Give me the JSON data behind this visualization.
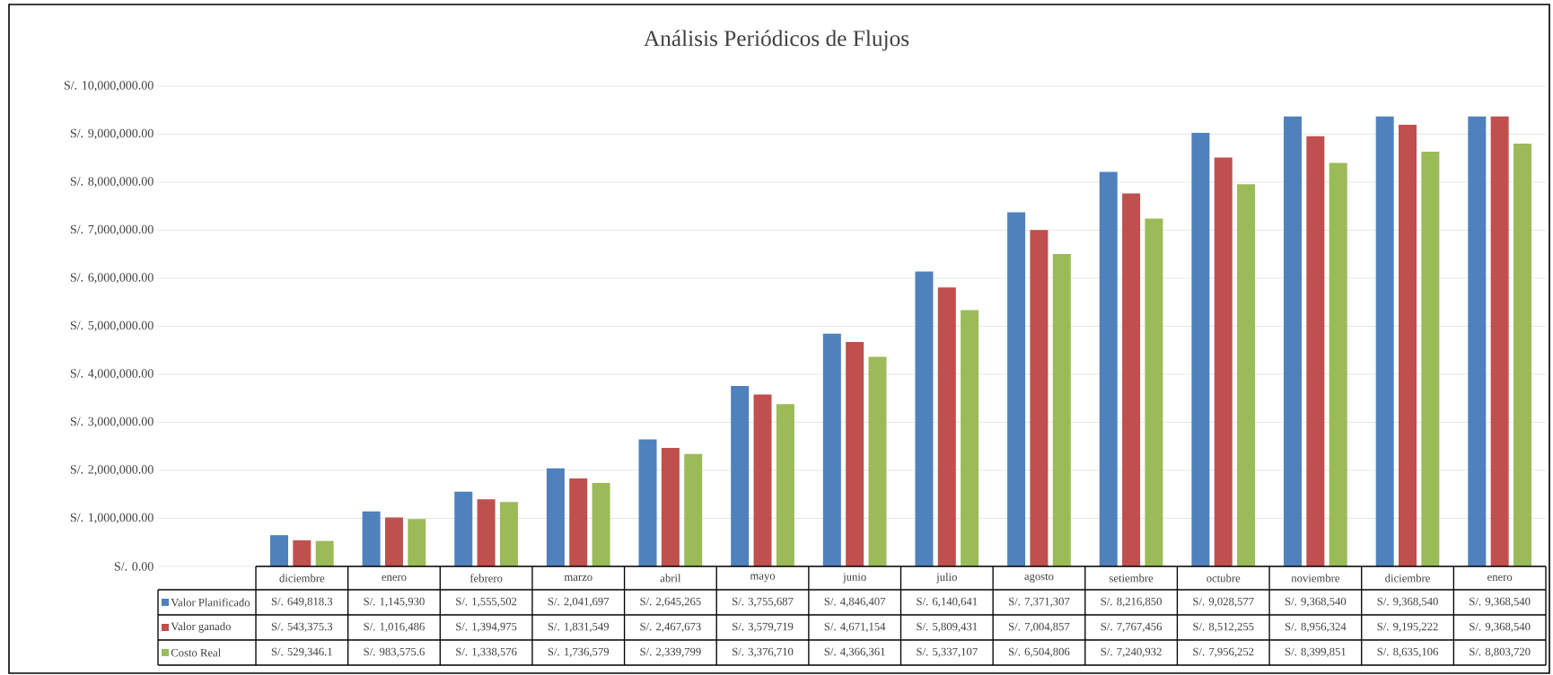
{
  "chart_data": {
    "type": "bar",
    "title": "Análisis Periódicos de Flujos",
    "categories": [
      "diciembre",
      "enero",
      "febrero",
      "marzo",
      "abril",
      "mayo",
      "junio",
      "julio",
      "agosto",
      "setiembre",
      "octubre",
      "noviembre",
      "diciembre",
      "enero"
    ],
    "series": [
      {
        "name": "Valor Planificado",
        "color": "#4f81bd",
        "values": [
          649818.3,
          1145930,
          1555502,
          2041697,
          2645265,
          3755687,
          4846407,
          6140641,
          7371307,
          8216850,
          9028577,
          9368540,
          9368540,
          9368540
        ],
        "value_labels": [
          "S/. 649,818.3",
          "S/. 1,145,930",
          "S/. 1,555,502",
          "S/. 2,041,697",
          "S/. 2,645,265",
          "S/. 3,755,687",
          "S/. 4,846,407",
          "S/. 6,140,641",
          "S/. 7,371,307",
          "S/. 8,216,850",
          "S/. 9,028,577",
          "S/. 9,368,540",
          "S/. 9,368,540",
          "S/. 9,368,540"
        ]
      },
      {
        "name": "Valor ganado",
        "color": "#c0504d",
        "values": [
          543375.3,
          1016486,
          1394975,
          1831549,
          2467673,
          3579719,
          4671154,
          5809431,
          7004857,
          7767456,
          8512255,
          8956324,
          9195222,
          9368540
        ],
        "value_labels": [
          "S/. 543,375.3",
          "S/. 1,016,486",
          "S/. 1,394,975",
          "S/. 1,831,549",
          "S/. 2,467,673",
          "S/. 3,579,719",
          "S/. 4,671,154",
          "S/. 5,809,431",
          "S/. 7,004,857",
          "S/. 7,767,456",
          "S/. 8,512,255",
          "S/. 8,956,324",
          "S/. 9,195,222",
          "S/. 9,368,540"
        ]
      },
      {
        "name": "Costo Real",
        "color": "#9bbb59",
        "values": [
          529346.1,
          983575.6,
          1338576,
          1736579,
          2339799,
          3376710,
          4366361,
          5337107,
          6504806,
          7240932,
          7956252,
          8399851,
          8635106,
          8803720
        ],
        "value_labels": [
          "S/. 529,346.1",
          "S/. 983,575.6",
          "S/. 1,338,576",
          "S/. 1,736,579",
          "S/. 2,339,799",
          "S/. 3,376,710",
          "S/. 4,366,361",
          "S/. 5,337,107",
          "S/. 6,504,806",
          "S/. 7,240,932",
          "S/. 7,956,252",
          "S/. 8,399,851",
          "S/. 8,635,106",
          "S/. 8,803,720"
        ]
      }
    ],
    "ylim": [
      0,
      10000000
    ],
    "yticks": [
      {
        "value": 0,
        "label": "S/. 0.00"
      },
      {
        "value": 1000000,
        "label": "S/. 1,000,000.00"
      },
      {
        "value": 2000000,
        "label": "S/. 2,000,000.00"
      },
      {
        "value": 3000000,
        "label": "S/. 3,000,000.00"
      },
      {
        "value": 4000000,
        "label": "S/. 4,000,000.00"
      },
      {
        "value": 5000000,
        "label": "S/. 5,000,000.00"
      },
      {
        "value": 6000000,
        "label": "S/. 6,000,000.00"
      },
      {
        "value": 7000000,
        "label": "S/. 7,000,000.00"
      },
      {
        "value": 8000000,
        "label": "S/. 8,000,000.00"
      },
      {
        "value": 9000000,
        "label": "S/. 9,000,000.00"
      },
      {
        "value": 10000000,
        "label": "S/. 10,000,000.00"
      }
    ],
    "grid": "y",
    "legend": "bottom"
  }
}
